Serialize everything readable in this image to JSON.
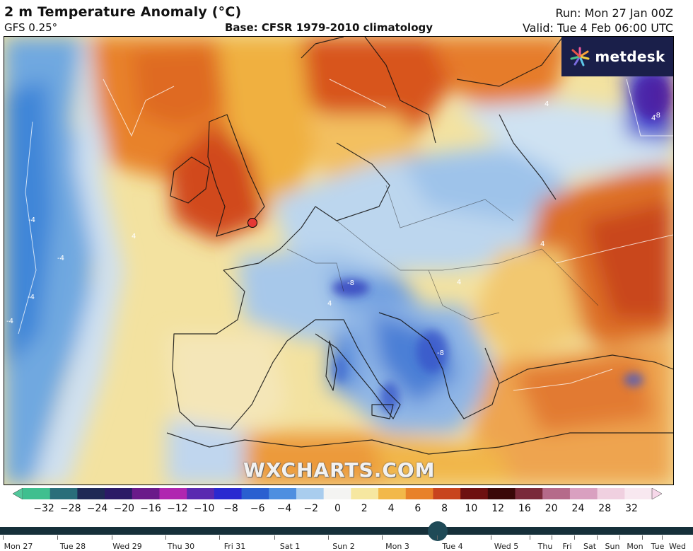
{
  "header": {
    "title": "2 m Temperature Anomaly (°C)",
    "model": "GFS 0.25°",
    "base": "Base: CFSR 1979-2010 climatology",
    "run": "Run: Mon 27 Jan 00Z",
    "valid": "Valid: Tue 4 Feb 06:00 UTC"
  },
  "branding": {
    "logo_text": "metdesk",
    "watermark": "WXCHARTS.COM"
  },
  "colorbar": {
    "ticks": [
      "−32",
      "−28",
      "−24",
      "−20",
      "−16",
      "−12",
      "−10",
      "−8",
      "−6",
      "−4",
      "−2",
      "0",
      "2",
      "4",
      "6",
      "8",
      "10",
      "12",
      "16",
      "20",
      "24",
      "28",
      "32"
    ],
    "colors": [
      "#3fbf8f",
      "#2a6e7a",
      "#1f2a55",
      "#2b1a66",
      "#6a1a8a",
      "#b026b0",
      "#5a2ab0",
      "#2a2ad0",
      "#2a5fd0",
      "#4e8fe0",
      "#a9cdee",
      "#f4f4f2",
      "#f6e7a0",
      "#f2b84a",
      "#e8812a",
      "#c8441e",
      "#6e1010",
      "#3a0808",
      "#7a2a3a",
      "#b56a8a",
      "#d9a0c0",
      "#f0d0e0",
      "#f8e8f0"
    ],
    "edge_left": "#52c79b",
    "edge_right": "#f7d8ea"
  },
  "timeline": {
    "days": [
      "Mon 27",
      "Tue 28",
      "Wed 29",
      "Thu 30",
      "Fri 31",
      "Sat 1",
      "Sun 2",
      "Mon 3",
      "Tue 4",
      "Wed 5",
      "Thu",
      "Fri",
      "Sat",
      "Sun",
      "Mon",
      "Tue",
      "Wed"
    ],
    "selected": "Tue 4"
  },
  "contour_labels": [
    "-4",
    "-4",
    "-4",
    "-4",
    "4",
    "4",
    "4",
    "4",
    "-8",
    "-8",
    "-8",
    "4",
    "4"
  ]
}
